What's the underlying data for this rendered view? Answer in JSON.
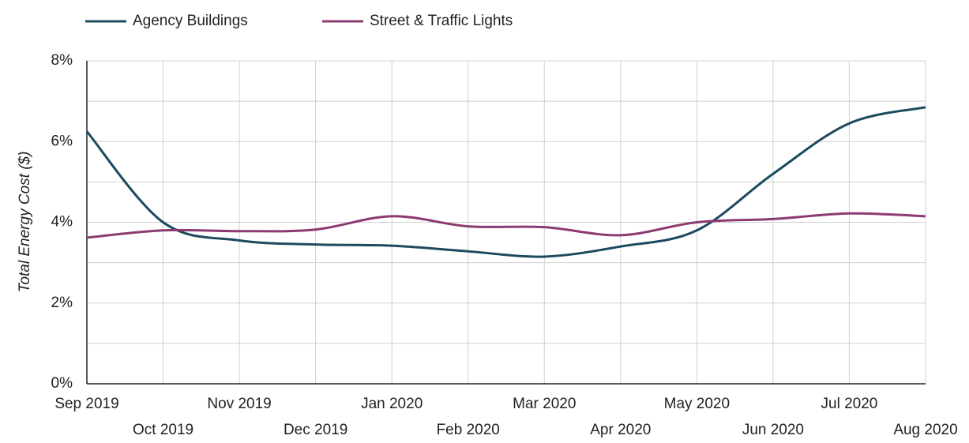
{
  "chart_data": {
    "type": "line",
    "y_label": "Total Energy Cost ($)",
    "categories": [
      "Sep 2019",
      "Oct 2019",
      "Nov 2019",
      "Dec 2019",
      "Jan 2020",
      "Feb 2020",
      "Mar 2020",
      "Apr 2020",
      "May 2020",
      "Jun 2020",
      "Jul 2020",
      "Aug 2020"
    ],
    "series": [
      {
        "name": "Agency Buildings",
        "color": "#1c4a5f",
        "values": [
          6.25,
          4.0,
          3.55,
          3.45,
          3.42,
          3.28,
          3.15,
          3.4,
          3.8,
          5.2,
          6.45,
          6.85
        ]
      },
      {
        "name": "Street & Traffic Lights",
        "color": "#8c3b70",
        "values": [
          3.62,
          3.8,
          3.78,
          3.82,
          4.15,
          3.9,
          3.88,
          3.68,
          4.0,
          4.08,
          4.22,
          4.15
        ]
      }
    ],
    "ylim": [
      0,
      8
    ],
    "yticks": [
      {
        "value": 0,
        "label": "0%"
      },
      {
        "value": 2,
        "label": "2%"
      },
      {
        "value": 4,
        "label": "4%"
      },
      {
        "value": 6,
        "label": "6%"
      },
      {
        "value": 8,
        "label": "8%"
      }
    ],
    "y_minor_ticks": [
      1,
      3,
      5,
      7
    ],
    "grid": true,
    "legend": "top",
    "smooth": true
  }
}
